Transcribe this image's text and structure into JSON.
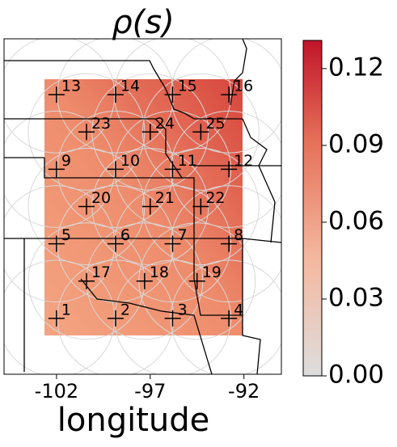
{
  "chart_data": {
    "type": "scatter",
    "title": "ρ(s)",
    "x_label": "longitude",
    "labels": [
      "1",
      "2",
      "3",
      "4",
      "5",
      "6",
      "7",
      "8",
      "9",
      "10",
      "11",
      "12",
      "13",
      "14",
      "15",
      "16",
      "17",
      "18",
      "19",
      "20",
      "21",
      "22",
      "23",
      "24",
      "25"
    ],
    "x": [
      -102,
      -98.85,
      -95.8,
      -92.8,
      -102,
      -98.85,
      -95.8,
      -92.8,
      -102,
      -98.85,
      -95.8,
      -92.8,
      -102,
      -98.85,
      -95.8,
      -92.8,
      -100.4,
      -97.3,
      -94.5,
      -100.4,
      -97.0,
      -94.3,
      -100.4,
      -97.0,
      -94.3
    ],
    "y": [
      35,
      35,
      35,
      35,
      37,
      37,
      37,
      37,
      39,
      39,
      39,
      39,
      41,
      41,
      41,
      41,
      36,
      36,
      36,
      38,
      38,
      38,
      40,
      40,
      40
    ],
    "color": "#000000",
    "xlim": [
      -104.8,
      -90.0
    ],
    "ylim": [
      33.5,
      42.5
    ],
    "xticks": [
      -102,
      -97,
      -92
    ],
    "colorbar": {
      "clim": [
        0,
        0.131
      ],
      "colors": [
        "#dddddd",
        "#c0152a"
      ],
      "ticks": [
        {
          "value": 0,
          "label": "0.00"
        },
        0.03,
        0.06,
        0.09,
        0.12
      ]
    }
  }
}
